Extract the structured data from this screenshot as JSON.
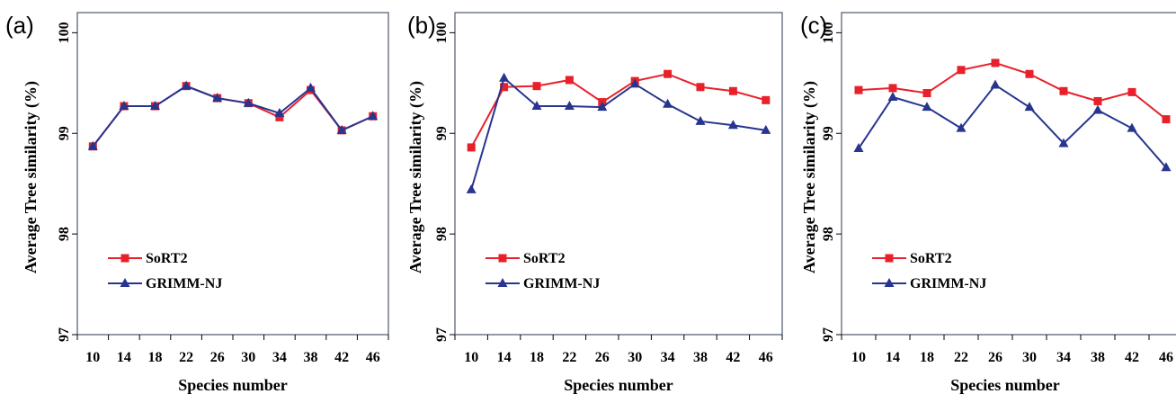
{
  "chart_data": [
    {
      "type": "line",
      "panel_label": "(a)",
      "xlabel": "Species number",
      "ylabel": "Average Tree similarity (%)",
      "x": [
        10,
        14,
        18,
        22,
        26,
        30,
        34,
        38,
        42,
        46
      ],
      "ylim": [
        97,
        100.2
      ],
      "yticks": [
        97,
        98,
        99,
        100
      ],
      "grid": false,
      "legend_position": "bottom-left",
      "series": [
        {
          "name": "SoRT2",
          "color": "#e8202a",
          "marker": "square",
          "values": [
            98.87,
            99.27,
            99.27,
            99.47,
            99.35,
            99.3,
            99.16,
            99.43,
            99.03,
            99.17
          ]
        },
        {
          "name": "GRIMM-NJ",
          "color": "#27358f",
          "marker": "triangle",
          "values": [
            98.87,
            99.27,
            99.27,
            99.47,
            99.35,
            99.3,
            99.2,
            99.45,
            99.03,
            99.17
          ]
        }
      ]
    },
    {
      "type": "line",
      "panel_label": "(b)",
      "xlabel": "Species number",
      "ylabel": "Average Tree similarity (%)",
      "x": [
        10,
        14,
        18,
        22,
        26,
        30,
        34,
        38,
        42,
        46
      ],
      "ylim": [
        97,
        100.2
      ],
      "yticks": [
        97,
        98,
        99,
        100
      ],
      "grid": false,
      "legend_position": "bottom-left",
      "series": [
        {
          "name": "SoRT2",
          "color": "#e8202a",
          "marker": "square",
          "values": [
            98.86,
            99.46,
            99.47,
            99.53,
            99.31,
            99.52,
            99.59,
            99.46,
            99.42,
            99.33
          ]
        },
        {
          "name": "GRIMM-NJ",
          "color": "#27358f",
          "marker": "triangle",
          "values": [
            98.44,
            99.55,
            99.27,
            99.27,
            99.26,
            99.49,
            99.29,
            99.12,
            99.08,
            99.03
          ]
        }
      ]
    },
    {
      "type": "line",
      "panel_label": "(c)",
      "xlabel": "Species number",
      "ylabel": "Average Tree similarity (%)",
      "x": [
        10,
        14,
        18,
        22,
        26,
        30,
        34,
        38,
        42,
        46
      ],
      "ylim": [
        97,
        100.2
      ],
      "yticks": [
        97,
        98,
        99,
        100
      ],
      "grid": false,
      "legend_position": "bottom-left",
      "series": [
        {
          "name": "SoRT2",
          "color": "#e8202a",
          "marker": "square",
          "values": [
            99.43,
            99.45,
            99.4,
            99.63,
            99.7,
            99.59,
            99.42,
            99.32,
            99.41,
            99.14
          ]
        },
        {
          "name": "GRIMM-NJ",
          "color": "#27358f",
          "marker": "triangle",
          "values": [
            98.85,
            99.36,
            99.26,
            99.05,
            99.48,
            99.26,
            98.9,
            99.23,
            99.05,
            98.66
          ]
        }
      ]
    }
  ]
}
